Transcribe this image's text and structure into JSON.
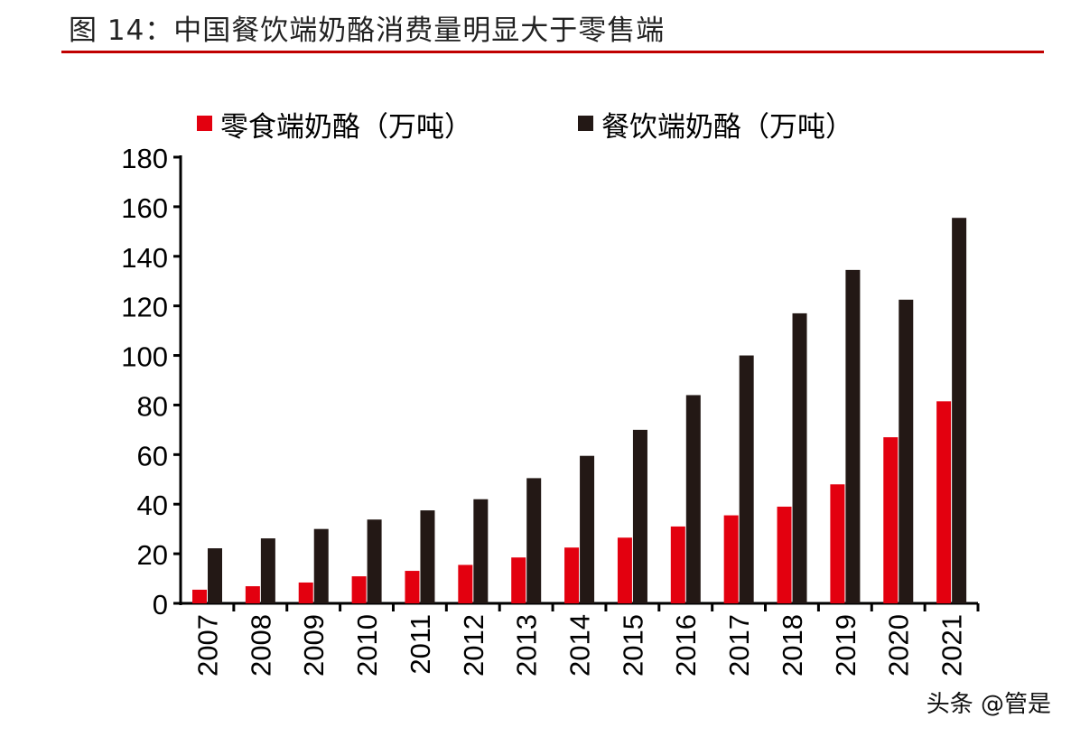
{
  "title": "图 14：中国餐饮端奶酪消费量明显大于零售端",
  "watermark": "头条 @管是",
  "chart_data": {
    "type": "bar",
    "categories": [
      "2007",
      "2008",
      "2009",
      "2010",
      "2011",
      "2012",
      "2013",
      "2014",
      "2015",
      "2016",
      "2017",
      "2018",
      "2019",
      "2020",
      "2021"
    ],
    "series": [
      {
        "name": "零食端奶酪（万吨）",
        "color": "#e3000f",
        "values": [
          5.5,
          6.9,
          8.4,
          10.9,
          13.1,
          15.5,
          18.5,
          22.5,
          26.5,
          31,
          35.5,
          39,
          48,
          67,
          81.5
        ]
      },
      {
        "name": "餐饮端奶酪（万吨）",
        "color": "#231815",
        "values": [
          22.2,
          26.2,
          30,
          33.8,
          37.5,
          42,
          50.5,
          59.5,
          70,
          84,
          100,
          117,
          134.5,
          122.5,
          155.5
        ]
      }
    ],
    "ylim": [
      0,
      180
    ],
    "yticks": [
      "0",
      "20",
      "40",
      "60",
      "80",
      "100",
      "120",
      "140",
      "160",
      "180"
    ],
    "xlabel": "",
    "ylabel": "",
    "legend": "top",
    "grid": false
  }
}
